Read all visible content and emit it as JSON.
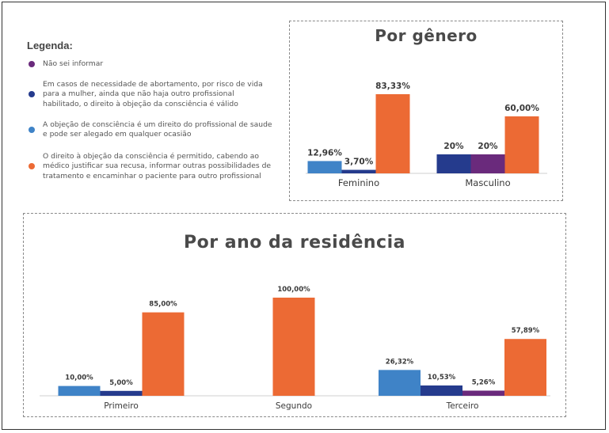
{
  "colors": {
    "nao_sei": "#6a2a7c",
    "abortamento": "#253b8d",
    "direito_profissional": "#3f83c7",
    "permitido_com_encaminhamento": "#ec6a34"
  },
  "legend": {
    "title": "Legenda:",
    "items": [
      {
        "text": "Não sei informar",
        "color": "#6a2a7c"
      },
      {
        "text": "Em casos de necessidade de abortamento, por risco de vida para a mulher, ainda que não haja outro profissional habilitado, o direito à objeção da consciência é válido",
        "color": "#253b8d"
      },
      {
        "text": "A objeção de consciência é um direito do profissional de saude e pode ser alegado em qualquer ocasião",
        "color": "#3f83c7"
      },
      {
        "text": "O direito à objeção da consciência é permitido, cabendo ao médico justificar sua recusa, informar outras possibilidades de tratamento e encaminhar o paciente para outro profissional",
        "color": "#ec6a34"
      }
    ]
  },
  "chart_data": [
    {
      "type": "bar",
      "title": "Por gênero",
      "categories": [
        "Feminino",
        "Masculino"
      ],
      "ylim": [
        0,
        100
      ],
      "groups": [
        {
          "category": "Feminino",
          "bars": [
            {
              "value": 12.96,
              "label": "12,96%",
              "color": "#3f83c7"
            },
            {
              "value": 3.7,
              "label": "3,70%",
              "color": "#253b8d"
            },
            {
              "value": 83.33,
              "label": "83,33%",
              "color": "#ec6a34"
            }
          ]
        },
        {
          "category": "Masculino",
          "bars": [
            {
              "value": 20,
              "label": "20%",
              "color": "#253b8d"
            },
            {
              "value": 20,
              "label": "20%",
              "color": "#6a2a7c"
            },
            {
              "value": 60.0,
              "label": "60,00%",
              "color": "#ec6a34"
            }
          ]
        }
      ]
    },
    {
      "type": "bar",
      "title": "Por ano da residência",
      "categories": [
        "Primeiro",
        "Segundo",
        "Terceiro"
      ],
      "ylim": [
        0,
        100
      ],
      "groups": [
        {
          "category": "Primeiro",
          "bars": [
            {
              "value": 10.0,
              "label": "10,00%",
              "color": "#3f83c7"
            },
            {
              "value": 5.0,
              "label": "5,00%",
              "color": "#253b8d"
            },
            {
              "value": 85.0,
              "label": "85,00%",
              "color": "#ec6a34"
            }
          ]
        },
        {
          "category": "Segundo",
          "bars": [
            {
              "value": 100.0,
              "label": "100,00%",
              "color": "#ec6a34"
            }
          ]
        },
        {
          "category": "Terceiro",
          "bars": [
            {
              "value": 26.32,
              "label": "26,32%",
              "color": "#3f83c7"
            },
            {
              "value": 10.53,
              "label": "10,53%",
              "color": "#253b8d"
            },
            {
              "value": 5.26,
              "label": "5,26%",
              "color": "#6a2a7c"
            },
            {
              "value": 57.89,
              "label": "57,89%",
              "color": "#ec6a34"
            }
          ]
        }
      ]
    }
  ]
}
